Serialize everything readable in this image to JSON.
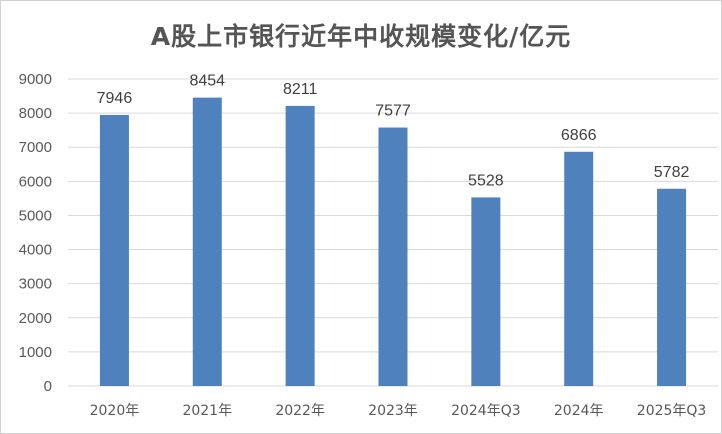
{
  "chart_data": {
    "type": "bar",
    "title": "A股上市银行近年中收规模变化/亿元",
    "xlabel": "",
    "ylabel": "",
    "categories": [
      "2020年",
      "2021年",
      "2022年",
      "2023年",
      "2024年Q3",
      "2024年",
      "2025年Q3"
    ],
    "values": [
      7946,
      8454,
      8211,
      7577,
      5528,
      6866,
      5782
    ],
    "ylim": [
      0,
      9000
    ],
    "yticks": [
      0,
      1000,
      2000,
      3000,
      4000,
      5000,
      6000,
      7000,
      8000,
      9000
    ],
    "grid": true,
    "legend": "none",
    "bar_color": "#4f81bd",
    "grid_color": "#d9d9d9"
  }
}
